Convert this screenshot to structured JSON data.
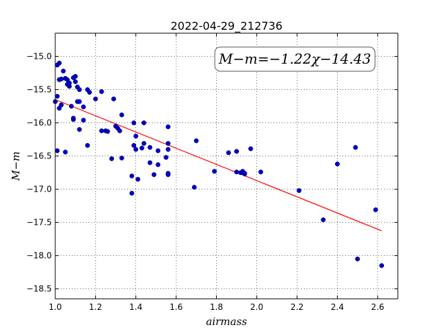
{
  "chart_data": {
    "type": "scatter",
    "title": "2022-04-29_212736",
    "xlabel": "airmass",
    "ylabel": "M−m",
    "xlim": [
      1.0,
      2.7
    ],
    "ylim": [
      -18.65,
      -14.65
    ],
    "xticks": [
      1.0,
      1.2,
      1.4,
      1.6,
      1.8,
      2.0,
      2.2,
      2.4,
      2.6
    ],
    "xtick_labels": [
      "1.0",
      "1.2",
      "1.4",
      "1.6",
      "1.8",
      "2.0",
      "2.2",
      "2.4",
      "2.6"
    ],
    "yticks": [
      -15.0,
      -15.5,
      -16.0,
      -16.5,
      -17.0,
      -17.5,
      -18.0,
      -18.5
    ],
    "ytick_labels": [
      "−15.0",
      "−15.5",
      "−16.0",
      "−16.5",
      "−17.0",
      "−17.5",
      "−18.0",
      "−18.5"
    ],
    "grid": true,
    "annotation": "M−m=−1.22χ−14.43",
    "annotation_position": "top-right",
    "fit": {
      "slope": -1.22,
      "intercept": -14.43,
      "x_range": [
        1.0,
        2.62
      ],
      "color": "#ff0000"
    },
    "marker_color": "#0000cc",
    "points": [
      [
        1.0,
        -15.68
      ],
      [
        1.01,
        -15.6
      ],
      [
        1.01,
        -16.42
      ],
      [
        1.01,
        -15.13
      ],
      [
        1.02,
        -15.1
      ],
      [
        1.02,
        -15.35
      ],
      [
        1.02,
        -15.78
      ],
      [
        1.03,
        -15.73
      ],
      [
        1.03,
        -15.34
      ],
      [
        1.04,
        -15.22
      ],
      [
        1.05,
        -15.33
      ],
      [
        1.05,
        -16.44
      ],
      [
        1.06,
        -15.35
      ],
      [
        1.06,
        -15.42
      ],
      [
        1.07,
        -15.45
      ],
      [
        1.07,
        -15.4
      ],
      [
        1.08,
        -15.75
      ],
      [
        1.09,
        -15.32
      ],
      [
        1.09,
        -15.95
      ],
      [
        1.09,
        -15.93
      ],
      [
        1.1,
        -15.3
      ],
      [
        1.1,
        -15.38
      ],
      [
        1.11,
        -15.46
      ],
      [
        1.11,
        -15.68
      ],
      [
        1.12,
        -15.68
      ],
      [
        1.12,
        -15.5
      ],
      [
        1.12,
        -16.1
      ],
      [
        1.14,
        -15.76
      ],
      [
        1.14,
        -15.96
      ],
      [
        1.16,
        -16.34
      ],
      [
        1.16,
        -15.5
      ],
      [
        1.17,
        -15.54
      ],
      [
        1.2,
        -15.64
      ],
      [
        1.23,
        -15.53
      ],
      [
        1.23,
        -16.12
      ],
      [
        1.25,
        -16.12
      ],
      [
        1.26,
        -16.13
      ],
      [
        1.28,
        -16.54
      ],
      [
        1.29,
        -15.64
      ],
      [
        1.3,
        -16.05
      ],
      [
        1.31,
        -16.08
      ],
      [
        1.32,
        -16.12
      ],
      [
        1.33,
        -15.88
      ],
      [
        1.33,
        -16.53
      ],
      [
        1.38,
        -17.06
      ],
      [
        1.38,
        -16.8
      ],
      [
        1.39,
        -16.34
      ],
      [
        1.39,
        -16.0
      ],
      [
        1.4,
        -16.4
      ],
      [
        1.4,
        -16.2
      ],
      [
        1.41,
        -16.85
      ],
      [
        1.43,
        -16.38
      ],
      [
        1.44,
        -16.0
      ],
      [
        1.44,
        -16.31
      ],
      [
        1.47,
        -16.37
      ],
      [
        1.47,
        -16.6
      ],
      [
        1.49,
        -16.78
      ],
      [
        1.51,
        -16.63
      ],
      [
        1.51,
        -16.42
      ],
      [
        1.55,
        -16.52
      ],
      [
        1.56,
        -16.31
      ],
      [
        1.56,
        -16.4
      ],
      [
        1.56,
        -16.06
      ],
      [
        1.56,
        -16.76
      ],
      [
        1.56,
        -16.78
      ],
      [
        1.69,
        -16.97
      ],
      [
        1.7,
        -16.27
      ],
      [
        1.79,
        -16.73
      ],
      [
        1.86,
        -16.45
      ],
      [
        1.9,
        -16.43
      ],
      [
        1.9,
        -16.74
      ],
      [
        1.92,
        -16.75
      ],
      [
        1.93,
        -16.73
      ],
      [
        1.94,
        -16.77
      ],
      [
        1.94,
        -16.76
      ],
      [
        1.97,
        -16.39
      ],
      [
        2.02,
        -16.74
      ],
      [
        2.21,
        -17.02
      ],
      [
        2.33,
        -17.46
      ],
      [
        2.4,
        -16.62
      ],
      [
        2.49,
        -16.37
      ],
      [
        2.5,
        -18.05
      ],
      [
        2.59,
        -17.31
      ],
      [
        2.62,
        -18.15
      ]
    ]
  }
}
